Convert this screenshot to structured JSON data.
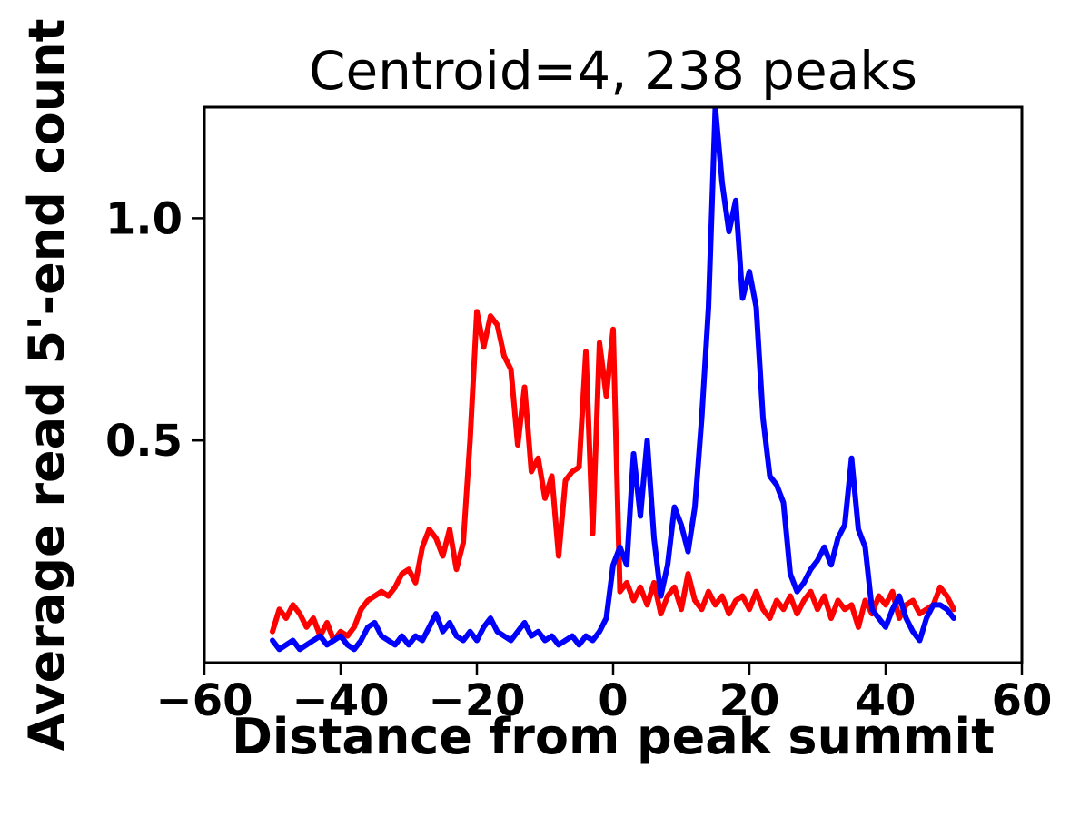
{
  "chart_data": {
    "type": "line",
    "title": "Centroid=4, 238 peaks",
    "xlabel": "Distance from peak summit",
    "ylabel": "Average read 5'-end count",
    "xlim": [
      -60,
      60
    ],
    "ylim": [
      0,
      1.25
    ],
    "grid": false,
    "legend": "none",
    "xticks": {
      "values": [
        -60,
        -40,
        -20,
        0,
        20,
        40,
        60
      ],
      "labels": [
        "−60",
        "−40",
        "−20",
        "0",
        "20",
        "40",
        "60"
      ]
    },
    "yticks": {
      "values": [
        0.5,
        1.0
      ],
      "labels": [
        "0.5",
        "1.0"
      ]
    },
    "x": [
      -50,
      -49,
      -48,
      -47,
      -46,
      -45,
      -44,
      -43,
      -42,
      -41,
      -40,
      -39,
      -38,
      -37,
      -36,
      -35,
      -34,
      -33,
      -32,
      -31,
      -30,
      -29,
      -28,
      -27,
      -26,
      -25,
      -24,
      -23,
      -22,
      -21,
      -20,
      -19,
      -18,
      -17,
      -16,
      -15,
      -14,
      -13,
      -12,
      -11,
      -10,
      -9,
      -8,
      -7,
      -6,
      -5,
      -4,
      -3,
      -2,
      -1,
      0,
      1,
      2,
      3,
      4,
      5,
      6,
      7,
      8,
      9,
      10,
      11,
      12,
      13,
      14,
      15,
      16,
      17,
      18,
      19,
      20,
      21,
      22,
      23,
      24,
      25,
      26,
      27,
      28,
      29,
      30,
      31,
      32,
      33,
      34,
      35,
      36,
      37,
      38,
      39,
      40,
      41,
      42,
      43,
      44,
      45,
      46,
      47,
      48,
      49,
      50
    ],
    "series": [
      {
        "name": "red",
        "color": "#ff0000",
        "values": [
          0.07,
          0.12,
          0.1,
          0.13,
          0.11,
          0.08,
          0.1,
          0.06,
          0.09,
          0.05,
          0.07,
          0.06,
          0.08,
          0.12,
          0.14,
          0.15,
          0.16,
          0.15,
          0.17,
          0.2,
          0.21,
          0.18,
          0.26,
          0.3,
          0.28,
          0.24,
          0.3,
          0.21,
          0.27,
          0.5,
          0.79,
          0.71,
          0.78,
          0.76,
          0.69,
          0.66,
          0.49,
          0.62,
          0.43,
          0.46,
          0.37,
          0.42,
          0.24,
          0.41,
          0.43,
          0.44,
          0.7,
          0.29,
          0.72,
          0.6,
          0.75,
          0.16,
          0.18,
          0.14,
          0.17,
          0.13,
          0.18,
          0.11,
          0.15,
          0.17,
          0.12,
          0.2,
          0.14,
          0.12,
          0.16,
          0.13,
          0.15,
          0.11,
          0.14,
          0.15,
          0.12,
          0.16,
          0.12,
          0.1,
          0.14,
          0.12,
          0.15,
          0.11,
          0.14,
          0.16,
          0.12,
          0.15,
          0.1,
          0.14,
          0.12,
          0.13,
          0.08,
          0.14,
          0.11,
          0.15,
          0.13,
          0.16,
          0.1,
          0.13,
          0.14,
          0.11,
          0.12,
          0.13,
          0.17,
          0.15,
          0.12
        ]
      },
      {
        "name": "blue",
        "color": "#0000ff",
        "values": [
          0.05,
          0.03,
          0.04,
          0.05,
          0.03,
          0.04,
          0.05,
          0.06,
          0.04,
          0.05,
          0.06,
          0.04,
          0.03,
          0.05,
          0.08,
          0.09,
          0.06,
          0.05,
          0.04,
          0.06,
          0.04,
          0.06,
          0.05,
          0.08,
          0.11,
          0.07,
          0.09,
          0.06,
          0.05,
          0.07,
          0.05,
          0.08,
          0.1,
          0.07,
          0.06,
          0.05,
          0.07,
          0.09,
          0.06,
          0.07,
          0.05,
          0.06,
          0.04,
          0.05,
          0.06,
          0.04,
          0.06,
          0.05,
          0.07,
          0.1,
          0.22,
          0.26,
          0.22,
          0.47,
          0.33,
          0.5,
          0.28,
          0.15,
          0.22,
          0.35,
          0.31,
          0.25,
          0.35,
          0.55,
          0.8,
          1.25,
          1.08,
          0.97,
          1.04,
          0.82,
          0.88,
          0.8,
          0.55,
          0.42,
          0.4,
          0.36,
          0.2,
          0.16,
          0.18,
          0.21,
          0.23,
          0.26,
          0.22,
          0.28,
          0.31,
          0.46,
          0.3,
          0.26,
          0.12,
          0.1,
          0.08,
          0.12,
          0.15,
          0.1,
          0.07,
          0.05,
          0.1,
          0.13,
          0.13,
          0.12,
          0.1
        ]
      }
    ]
  }
}
